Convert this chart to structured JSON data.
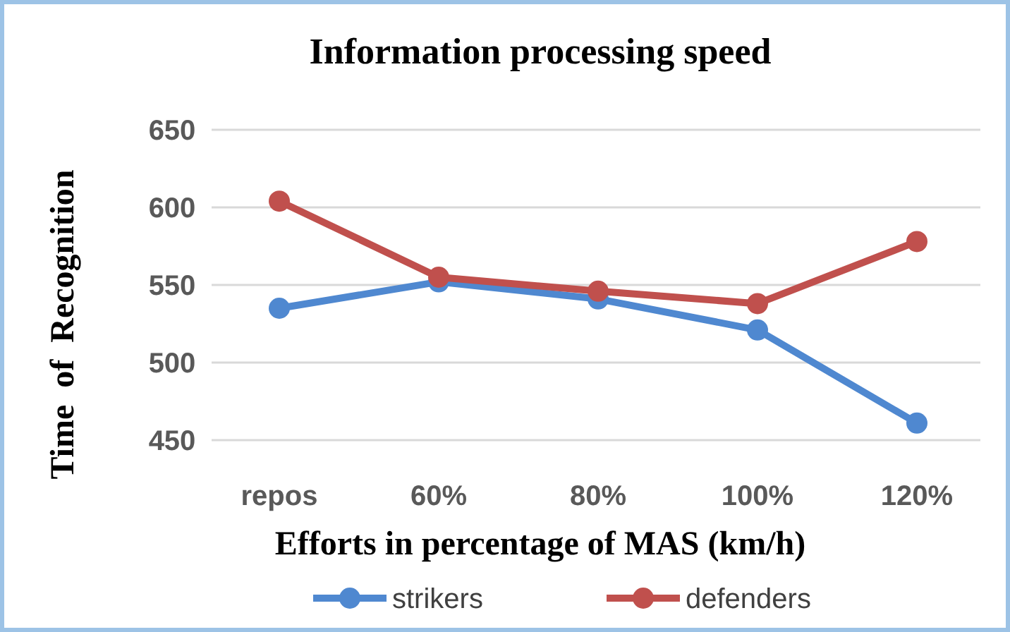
{
  "chart_data": {
    "type": "line",
    "title": "Information processing speed",
    "xlabel": "Efforts in percentage of MAS (km/h)",
    "ylabel": "Time  of  Recognition",
    "categories": [
      "repos",
      "60%",
      "80%",
      "100%",
      "120%"
    ],
    "series": [
      {
        "name": "strikers",
        "color": "#4f88d0",
        "values": [
          535,
          552,
          541,
          521,
          461
        ]
      },
      {
        "name": "defenders",
        "color": "#c0504d",
        "values": [
          604,
          555,
          546,
          538,
          578
        ]
      }
    ],
    "ylim": [
      450,
      650
    ],
    "yticks": [
      450,
      500,
      550,
      600,
      650
    ],
    "grid": "y",
    "legend": "bottom",
    "marker": "circle",
    "line_style": "solid"
  }
}
